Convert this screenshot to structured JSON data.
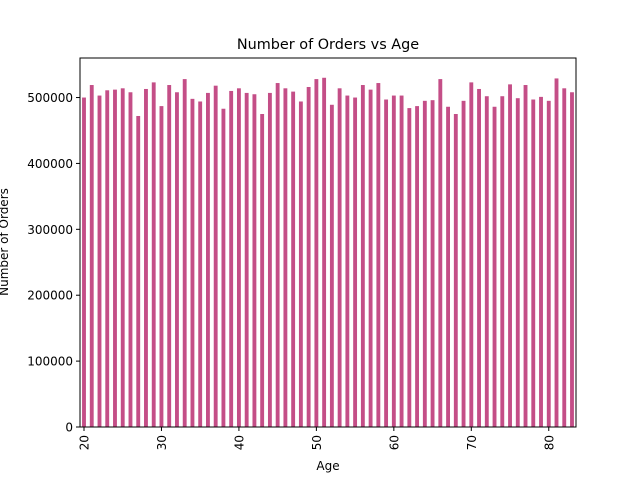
{
  "chart_data": {
    "type": "bar",
    "title": "Number of Orders vs Age",
    "xlabel": "Age",
    "ylabel": "Number of Orders",
    "bar_color": "#c44e87",
    "ylim": [
      0,
      560000
    ],
    "yticks": [
      0,
      100000,
      200000,
      300000,
      400000,
      500000
    ],
    "xtick_labels": [
      "20",
      "30",
      "40",
      "50",
      "60",
      "70",
      "80"
    ],
    "grid": false,
    "legend": "none",
    "categories": [
      20,
      21,
      22,
      23,
      24,
      25,
      26,
      27,
      28,
      29,
      30,
      31,
      32,
      33,
      34,
      35,
      36,
      37,
      38,
      39,
      40,
      41,
      42,
      43,
      44,
      45,
      46,
      47,
      48,
      49,
      50,
      51,
      52,
      53,
      54,
      55,
      56,
      57,
      58,
      59,
      60,
      61,
      62,
      63,
      64,
      65,
      66,
      67,
      68,
      69,
      70,
      71,
      72,
      73,
      74,
      75,
      76,
      77,
      78,
      79,
      80,
      81,
      82,
      83
    ],
    "values": [
      500000,
      519000,
      503000,
      511000,
      512000,
      514000,
      508000,
      472000,
      513000,
      523000,
      487000,
      519000,
      508000,
      528000,
      498000,
      494000,
      507000,
      518000,
      483000,
      510000,
      514000,
      507000,
      505000,
      475000,
      507000,
      522000,
      514000,
      509000,
      494000,
      516000,
      528000,
      530000,
      489000,
      514000,
      503000,
      500000,
      519000,
      512000,
      522000,
      497000,
      503000,
      503000,
      484000,
      487000,
      495000,
      496000,
      528000,
      486000,
      475000,
      495000,
      523000,
      513000,
      502000,
      486000,
      502000,
      520000,
      499000,
      519000,
      497000,
      501000,
      495000,
      529000,
      514000,
      508000
    ]
  }
}
